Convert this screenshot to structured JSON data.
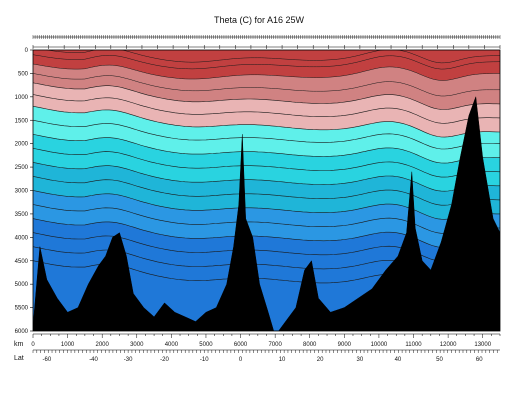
{
  "chart_data": {
    "type": "heatmap",
    "title": "Theta (C) for A16 25W",
    "xlabel": "km",
    "x2label": "Lat",
    "x": {
      "range": [
        0,
        13500
      ],
      "ticks": [
        0,
        1000,
        2000,
        3000,
        4000,
        5000,
        6000,
        7000,
        8000,
        9000,
        10000,
        11000,
        12000,
        13000
      ]
    },
    "lat_ticks": [
      {
        "km": 400,
        "label": "-60"
      },
      {
        "km": 1750,
        "label": "-40"
      },
      {
        "km": 2750,
        "label": "-30"
      },
      {
        "km": 3800,
        "label": "-20"
      },
      {
        "km": 4950,
        "label": "-10"
      },
      {
        "km": 6000,
        "label": "0"
      },
      {
        "km": 7200,
        "label": "10"
      },
      {
        "km": 8300,
        "label": "20"
      },
      {
        "km": 9450,
        "label": "30"
      },
      {
        "km": 10550,
        "label": "40"
      },
      {
        "km": 11750,
        "label": "50"
      },
      {
        "km": 12900,
        "label": "60"
      }
    ],
    "y": {
      "range": [
        0,
        6000
      ],
      "inverted": true,
      "ticks": [
        0,
        500,
        1000,
        1500,
        2000,
        2500,
        3000,
        3500,
        4000,
        4500,
        5000,
        5500,
        6000
      ]
    },
    "color_bands": [
      {
        "range_c": [
          -1.0,
          0.5
        ],
        "color": "#1f78d8"
      },
      {
        "range_c": [
          0.5,
          1.0
        ],
        "color": "#2b97e3"
      },
      {
        "range_c": [
          1.0,
          1.5
        ],
        "color": "#1fb5d8"
      },
      {
        "range_c": [
          1.5,
          2.5
        ],
        "color": "#29d3e0"
      },
      {
        "range_c": [
          2.5,
          3.5
        ],
        "color": "#5ff0ea"
      },
      {
        "range_c": [
          3.5,
          5.0
        ],
        "color": "#e9b4b4"
      },
      {
        "range_c": [
          5.0,
          10.0
        ],
        "color": "#d08282"
      },
      {
        "range_c": [
          10.0,
          30.0
        ],
        "color": "#c14040"
      }
    ],
    "isotherm_depths_m": [
      {
        "z0": 150,
        "z1": 120
      },
      {
        "z0": 300,
        "z1": 250
      },
      {
        "z0": 500,
        "z1": 500
      },
      {
        "z0": 700,
        "z1": 850
      },
      {
        "z0": 900,
        "z1": 1150
      },
      {
        "z0": 1150,
        "z1": 1450
      },
      {
        "z0": 1400,
        "z1": 1750
      },
      {
        "z0": 1700,
        "z1": 2000
      },
      {
        "z0": 2000,
        "z1": 2300
      },
      {
        "z0": 2300,
        "z1": 2600
      },
      {
        "z0": 2600,
        "z1": 2900
      },
      {
        "z0": 2900,
        "z1": 3200
      },
      {
        "z0": 3200,
        "z1": 3500
      },
      {
        "z0": 3500,
        "z1": 3800
      },
      {
        "z0": 3800,
        "z1": 4100
      },
      {
        "z0": 4100,
        "z1": 4400
      },
      {
        "z0": 4400,
        "z1": 4700
      },
      {
        "z0": 4700,
        "z1": 5000
      }
    ],
    "bathymetry": [
      [
        0,
        5900
      ],
      [
        200,
        4200
      ],
      [
        400,
        4900
      ],
      [
        700,
        5300
      ],
      [
        1000,
        5600
      ],
      [
        1300,
        5500
      ],
      [
        1600,
        5000
      ],
      [
        1900,
        4600
      ],
      [
        2100,
        4400
      ],
      [
        2300,
        4000
      ],
      [
        2500,
        3900
      ],
      [
        2700,
        4400
      ],
      [
        2900,
        5200
      ],
      [
        3200,
        5500
      ],
      [
        3500,
        5700
      ],
      [
        3800,
        5400
      ],
      [
        4100,
        5600
      ],
      [
        4400,
        5700
      ],
      [
        4700,
        5800
      ],
      [
        5000,
        5600
      ],
      [
        5300,
        5500
      ],
      [
        5600,
        5000
      ],
      [
        5800,
        4200
      ],
      [
        5950,
        3300
      ],
      [
        6050,
        1800
      ],
      [
        6150,
        3600
      ],
      [
        6350,
        4000
      ],
      [
        6550,
        5000
      ],
      [
        6800,
        5600
      ],
      [
        7000,
        6100
      ],
      [
        7300,
        5800
      ],
      [
        7600,
        5500
      ],
      [
        7850,
        4700
      ],
      [
        8050,
        4500
      ],
      [
        8250,
        5300
      ],
      [
        8600,
        5600
      ],
      [
        9000,
        5500
      ],
      [
        9400,
        5300
      ],
      [
        9800,
        5100
      ],
      [
        10200,
        4700
      ],
      [
        10550,
        4400
      ],
      [
        10800,
        3900
      ],
      [
        10950,
        2600
      ],
      [
        11050,
        3800
      ],
      [
        11250,
        4500
      ],
      [
        11500,
        4700
      ],
      [
        11800,
        4100
      ],
      [
        12100,
        3300
      ],
      [
        12350,
        2300
      ],
      [
        12600,
        1400
      ],
      [
        12800,
        1000
      ],
      [
        13000,
        2300
      ],
      [
        13300,
        3600
      ],
      [
        13500,
        3900
      ]
    ]
  }
}
